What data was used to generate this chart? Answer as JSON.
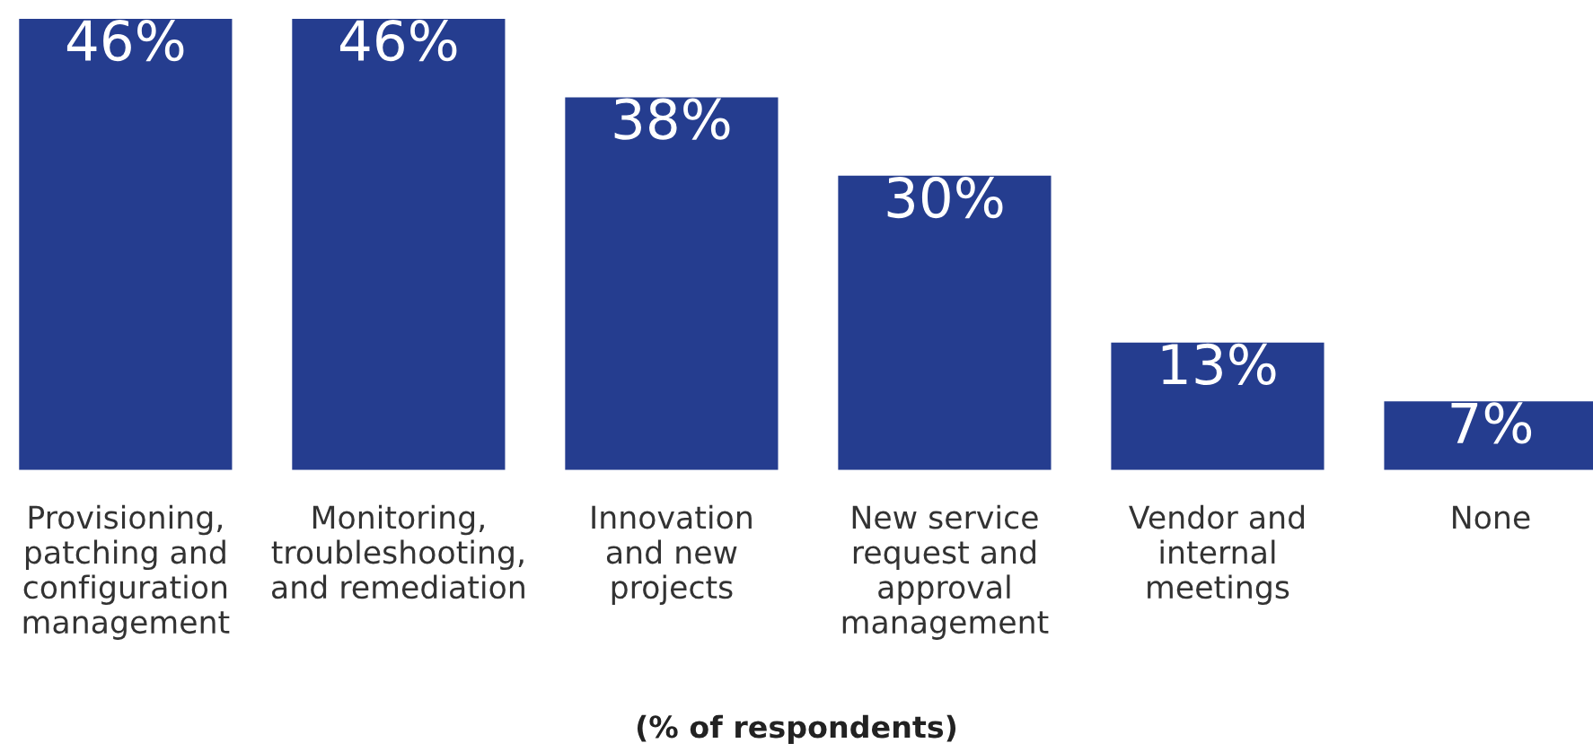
{
  "chart_data": {
    "type": "bar",
    "categories": [
      "Provisioning,\npatching and\nconfiguration\nmanagement",
      "Monitoring,\ntroubleshooting,\nand remediation",
      "Innovation\nand new\nprojects",
      "New service\nrequest and\napproval\nmanagement",
      "Vendor and\ninternal\nmeetings",
      "None"
    ],
    "values": [
      46,
      46,
      38,
      30,
      13,
      7
    ],
    "value_labels": [
      "46%",
      "46%",
      "38%",
      "30%",
      "13%",
      "7%"
    ],
    "color": "#253d8f",
    "xlabel": "(% of respondents)",
    "grid": false,
    "legend": false
  }
}
